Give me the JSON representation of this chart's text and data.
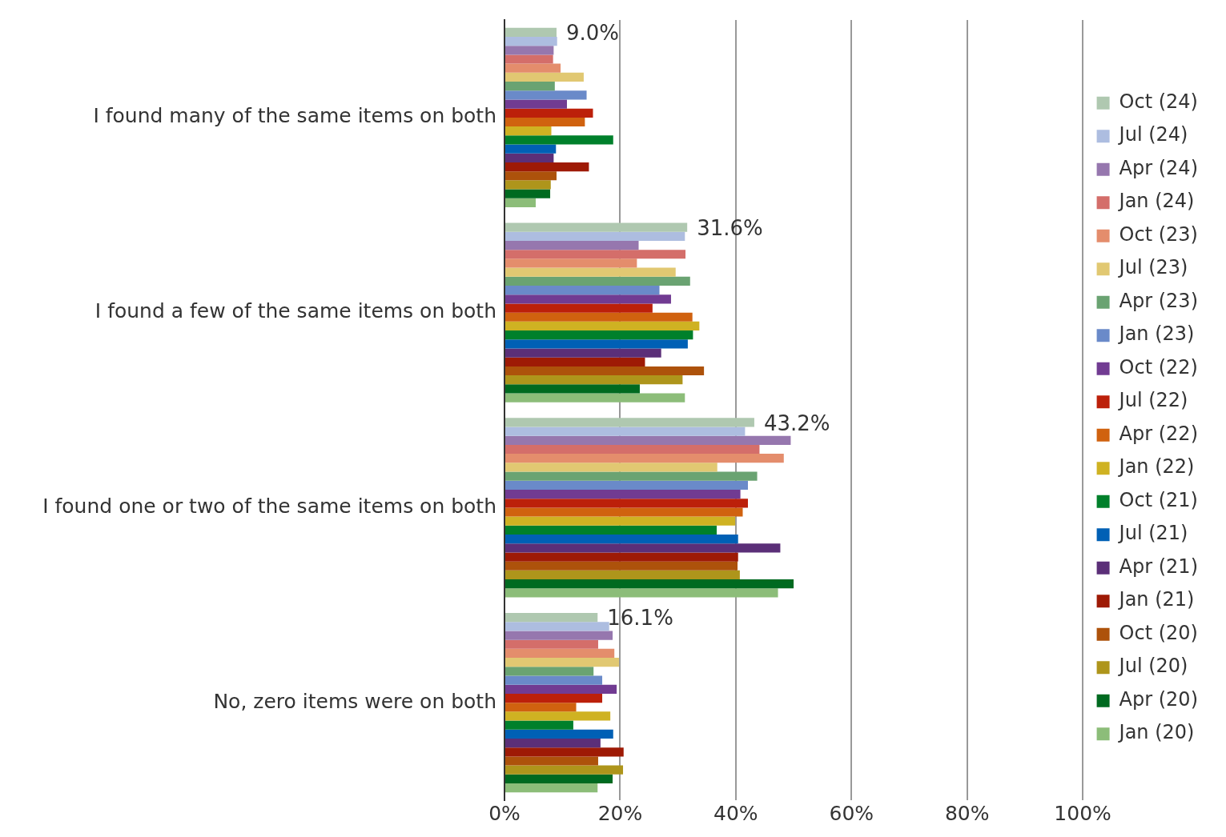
{
  "chart_data": {
    "type": "bar",
    "orientation": "horizontal",
    "categories": [
      "I found many of the same items on both",
      "I found a few of the same items on both",
      "I found one or two of the same items on both",
      "No, zero items were on both"
    ],
    "xlim": [
      0,
      100
    ],
    "xticks": [
      {
        "value": 0,
        "label": "0%"
      },
      {
        "value": 20,
        "label": "20%"
      },
      {
        "value": 40,
        "label": "40%"
      },
      {
        "value": 60,
        "label": "60%"
      },
      {
        "value": 80,
        "label": "80%"
      },
      {
        "value": 100,
        "label": "100%"
      }
    ],
    "grid": "x",
    "legend": "right",
    "series": [
      {
        "name": "Oct (24)",
        "color": "#afc8b0",
        "values": [
          9.0,
          31.6,
          43.2,
          16.1
        ],
        "value_labels": [
          "9.0%",
          "31.6%",
          "43.2%",
          "16.1%"
        ]
      },
      {
        "name": "Jul (24)",
        "color": "#adbde0",
        "values": [
          9.1,
          31.2,
          41.6,
          18.1
        ]
      },
      {
        "name": "Apr (24)",
        "color": "#9677ae",
        "values": [
          8.5,
          23.2,
          49.5,
          18.7
        ]
      },
      {
        "name": "Jan (24)",
        "color": "#d46e6a",
        "values": [
          8.4,
          31.3,
          44.1,
          16.2
        ]
      },
      {
        "name": "Oct (23)",
        "color": "#e48d6c",
        "values": [
          9.7,
          22.9,
          48.3,
          19.0
        ]
      },
      {
        "name": "Jul (23)",
        "color": "#e1c872",
        "values": [
          13.7,
          29.6,
          36.8,
          19.8
        ]
      },
      {
        "name": "Apr (23)",
        "color": "#6aa372",
        "values": [
          8.7,
          32.1,
          43.7,
          15.4
        ]
      },
      {
        "name": "Jan (23)",
        "color": "#6a8ac9",
        "values": [
          14.2,
          26.8,
          42.1,
          16.9
        ]
      },
      {
        "name": "Oct (22)",
        "color": "#713b92",
        "values": [
          10.8,
          28.8,
          40.8,
          19.4
        ]
      },
      {
        "name": "Jul (22)",
        "color": "#bc200a",
        "values": [
          15.3,
          25.6,
          42.1,
          16.9
        ]
      },
      {
        "name": "Apr (22)",
        "color": "#d0620f",
        "values": [
          13.9,
          32.5,
          41.2,
          12.4
        ]
      },
      {
        "name": "Jan (22)",
        "color": "#cfb222",
        "values": [
          8.1,
          33.7,
          39.9,
          18.3
        ]
      },
      {
        "name": "Oct (21)",
        "color": "#00802b",
        "values": [
          18.8,
          32.6,
          36.7,
          11.9
        ]
      },
      {
        "name": "Jul (21)",
        "color": "#0060b5",
        "values": [
          8.9,
          31.7,
          40.4,
          18.8
        ]
      },
      {
        "name": "Apr (21)",
        "color": "#5b2f78",
        "values": [
          8.5,
          27.1,
          47.7,
          16.6
        ]
      },
      {
        "name": "Jan (21)",
        "color": "#9e1a05",
        "values": [
          14.6,
          24.3,
          40.4,
          20.6
        ]
      },
      {
        "name": "Oct (20)",
        "color": "#ad520b",
        "values": [
          9.0,
          34.5,
          40.3,
          16.2
        ]
      },
      {
        "name": "Jul (20)",
        "color": "#ae951b",
        "values": [
          8.0,
          30.8,
          40.7,
          20.5
        ]
      },
      {
        "name": "Apr (20)",
        "color": "#006a20",
        "values": [
          7.9,
          23.4,
          50.0,
          18.7
        ]
      },
      {
        "name": "Jan (20)",
        "color": "#8cbd79",
        "values": [
          5.4,
          31.2,
          47.3,
          16.1
        ]
      }
    ]
  }
}
